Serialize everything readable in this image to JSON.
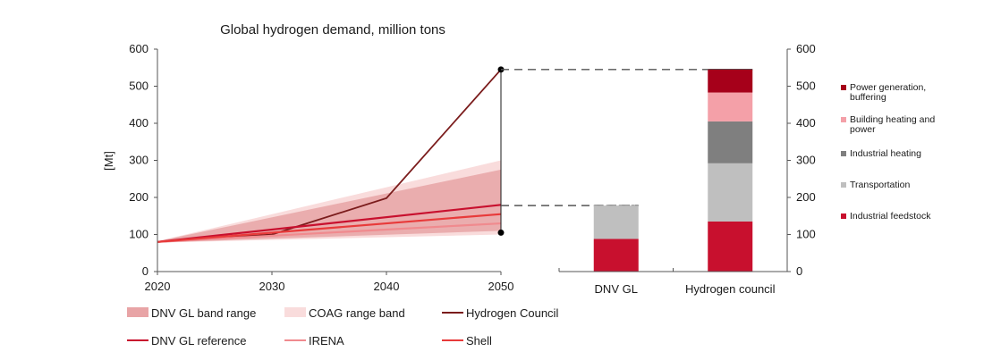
{
  "chart_data": [
    {
      "type": "line",
      "title": "Global hydrogen demand, million tons",
      "ylabel": "[Mt]",
      "xlabel": "",
      "ylim": [
        0,
        600
      ],
      "yticks": [
        0,
        100,
        200,
        300,
        400,
        500,
        600
      ],
      "xlim": [
        2020,
        2050
      ],
      "xticks": [
        2020,
        2030,
        2040,
        2050
      ],
      "grid": false,
      "legend_position": "bottom",
      "colors": {
        "dnv_band": "#e8a4a6",
        "coag_band": "#f9dcdc",
        "hydrogen_council": "#7b1c1c",
        "dnv_reference": "#c8102e",
        "irena": "#f08a8e",
        "shell": "#e83a3a"
      },
      "bands": [
        {
          "name": "DNV GL band range",
          "x": [
            2020,
            2050
          ],
          "lower": [
            78,
            110
          ],
          "upper": [
            82,
            275
          ]
        },
        {
          "name": "COAG range band",
          "x": [
            2020,
            2050
          ],
          "lower": [
            78,
            100
          ],
          "upper": [
            82,
            300
          ]
        }
      ],
      "series": [
        {
          "name": "Hydrogen Council",
          "x": [
            2020,
            2030,
            2040,
            2050
          ],
          "values": [
            80,
            100,
            198,
            545
          ]
        },
        {
          "name": "DNV GL reference",
          "x": [
            2020,
            2050
          ],
          "values": [
            80,
            180
          ]
        },
        {
          "name": "IRENA",
          "x": [
            2020,
            2050
          ],
          "values": [
            80,
            130
          ]
        },
        {
          "name": "Shell",
          "x": [
            2020,
            2050
          ],
          "values": [
            80,
            155
          ]
        }
      ],
      "markers": [
        {
          "x": 2050,
          "value": 545
        },
        {
          "x": 2050,
          "value": 105
        }
      ]
    },
    {
      "type": "bar",
      "stacked": true,
      "categories": [
        "DNV GL",
        "Hydrogen council"
      ],
      "ylim": [
        0,
        600
      ],
      "yticks": [
        0,
        100,
        200,
        300,
        400,
        500,
        600
      ],
      "legend_position": "right",
      "series": [
        {
          "name": "Industrial feedstock",
          "color": "#c8102e",
          "values": [
            88,
            135
          ]
        },
        {
          "name": "Transportation",
          "color": "#bfbfbf",
          "values": [
            90,
            157
          ]
        },
        {
          "name": "Industrial heating",
          "color": "#7f7f7f",
          "values": [
            0,
            113
          ]
        },
        {
          "name": "Building heating and power",
          "color": "#f4a0a8",
          "values": [
            0,
            78
          ]
        },
        {
          "name": "Power generation, buffering",
          "color": "#a6001a",
          "values": [
            0,
            62
          ]
        }
      ],
      "legend_labels": [
        {
          "series": "Power generation, buffering",
          "lines": [
            "Power generation,",
            "buffering"
          ]
        },
        {
          "series": "Building heating and power",
          "lines": [
            "Building heating and",
            "power"
          ]
        },
        {
          "series": "Industrial heating",
          "lines": [
            "Industrial heating"
          ]
        },
        {
          "series": "Transportation",
          "lines": [
            "Transportation"
          ]
        },
        {
          "series": "Industrial feedstock",
          "lines": [
            "Industrial feedstock"
          ]
        }
      ]
    }
  ],
  "legend": [
    {
      "label": "DNV GL band range",
      "kind": "band",
      "color": "#e8a4a6"
    },
    {
      "label": "COAG range band",
      "kind": "band",
      "color": "#f9dcdc"
    },
    {
      "label": "Hydrogen Council",
      "kind": "line",
      "color": "#7b1c1c"
    },
    {
      "label": "DNV GL reference",
      "kind": "line",
      "color": "#c8102e"
    },
    {
      "label": "IRENA",
      "kind": "line",
      "color": "#f08a8e"
    },
    {
      "label": "Shell",
      "kind": "line",
      "color": "#e83a3a"
    }
  ]
}
